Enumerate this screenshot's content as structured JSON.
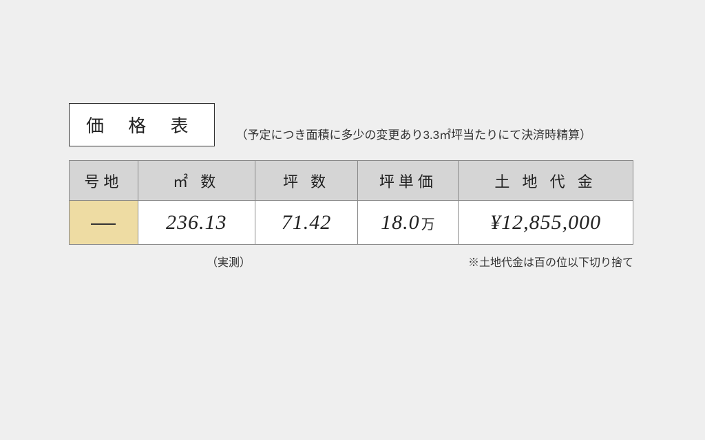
{
  "title": "価 格 表",
  "subtitle": "（予定につき面積に多少の変更あり3.3㎡坪当たりにて決済時精算）",
  "table": {
    "headers": {
      "lot": "号地",
      "m2": "㎡ 数",
      "tsubo": "坪 数",
      "tanka": "坪単価",
      "price": "土 地 代 金"
    },
    "row": {
      "lot_dash": true,
      "m2": "236.13",
      "tsubo": "71.42",
      "tanka_value": "18.0",
      "tanka_unit": "万",
      "price": "¥12,855,000"
    }
  },
  "notes": {
    "left": "（実測）",
    "right": "※土地代金は百の位以下切り捨て"
  },
  "colors": {
    "page_bg": "#efefef",
    "header_bg": "#d5d5d5",
    "lot_cell_bg": "#eedca3",
    "cell_bg": "#ffffff",
    "border": "#888888",
    "text": "#222222"
  }
}
